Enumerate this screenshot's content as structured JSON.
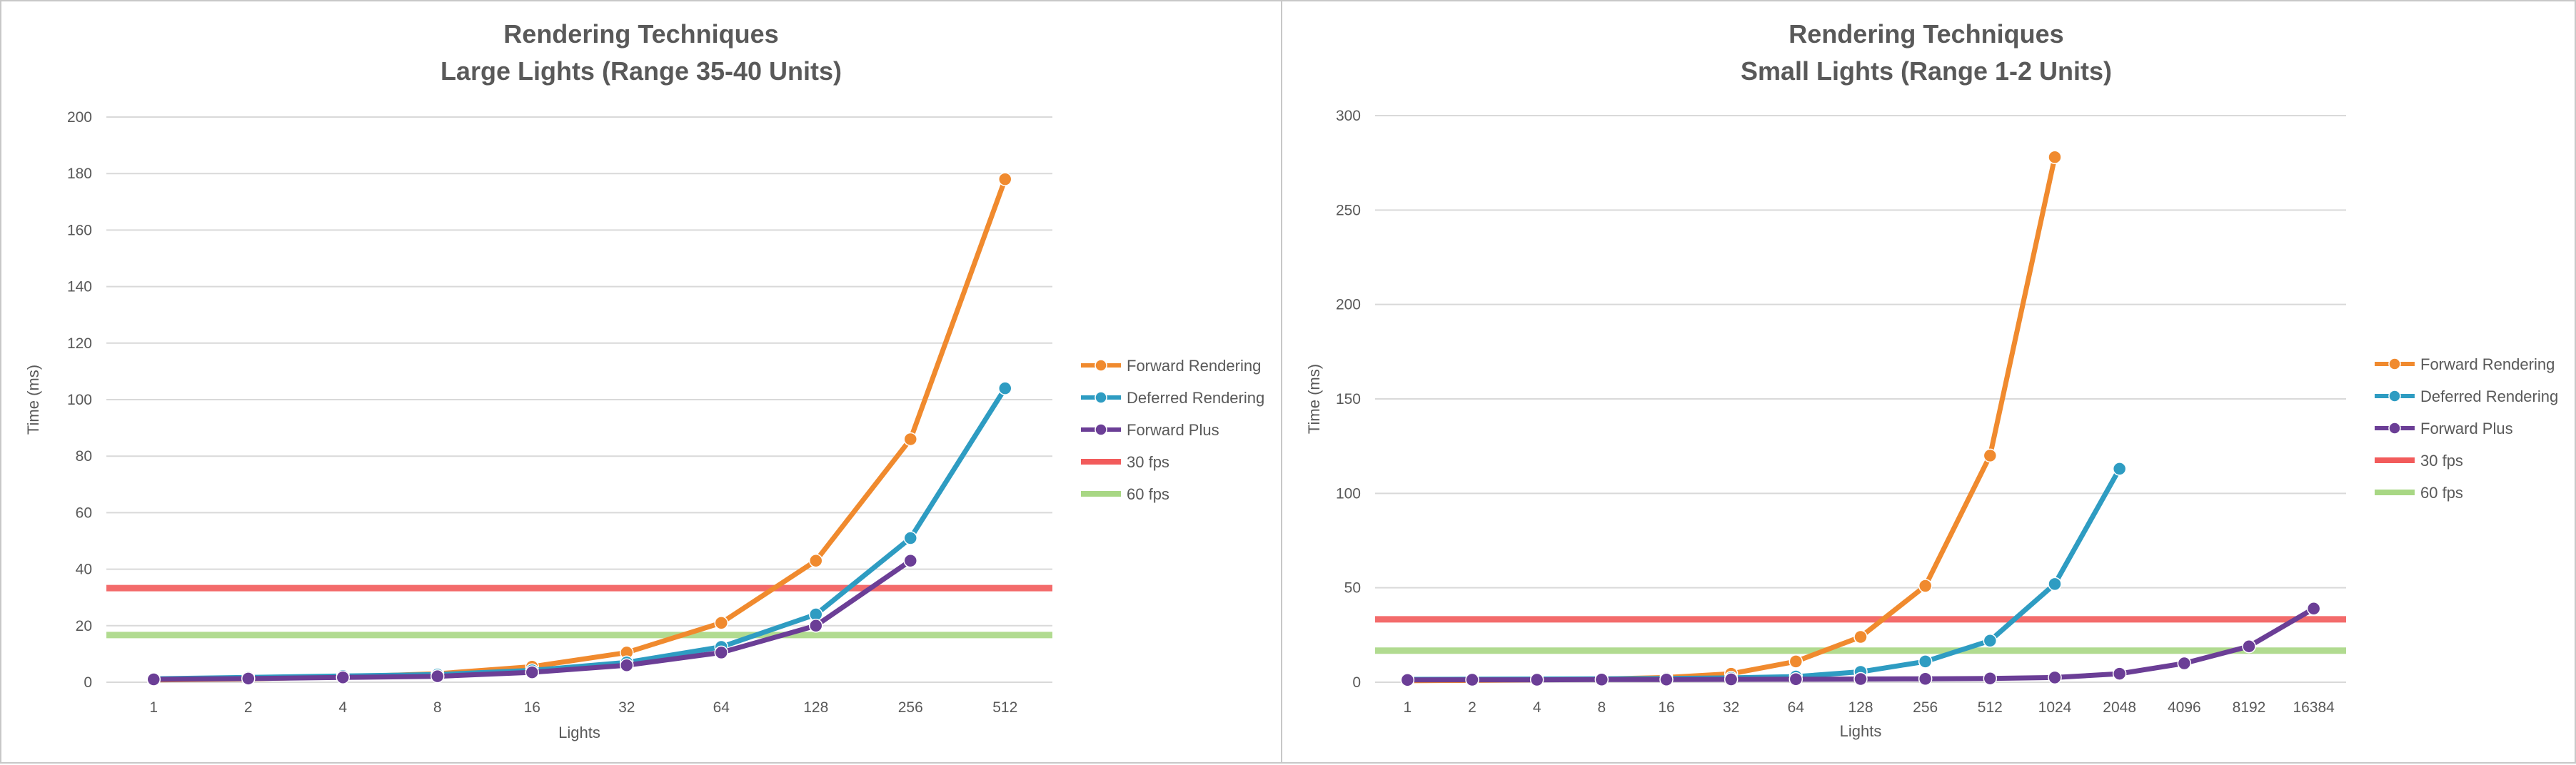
{
  "colors": {
    "forward_rendering": "#F08A2E",
    "deferred_rendering": "#2E9CC2",
    "forward_plus": "#6B3E96",
    "fps30": "#F25B5B",
    "fps60": "#A8D784",
    "grid": "#D9D9D9",
    "text": "#595959"
  },
  "chart_data": [
    {
      "type": "line",
      "title": [
        "Rendering Techniques",
        "Large Lights (Range 35-40 Units)"
      ],
      "xlabel": "Lights",
      "ylabel": "Time (ms)",
      "categories": [
        "1",
        "2",
        "4",
        "8",
        "16",
        "32",
        "64",
        "128",
        "256",
        "512"
      ],
      "ylim": [
        0,
        200
      ],
      "yticks": [
        0,
        20,
        40,
        60,
        80,
        100,
        120,
        140,
        160,
        180,
        200
      ],
      "grid": true,
      "legend_position": "right",
      "series": [
        {
          "name": "Forward Rendering",
          "color_key": "forward_rendering",
          "marker": true,
          "values": [
            0.8,
            1.2,
            1.9,
            3.0,
            5.5,
            10.5,
            21,
            43,
            86,
            178
          ]
        },
        {
          "name": "Deferred Rendering",
          "color_key": "deferred_rendering",
          "marker": true,
          "values": [
            1.2,
            1.7,
            2.2,
            2.7,
            4.2,
            7.0,
            12.5,
            24,
            51,
            104
          ]
        },
        {
          "name": "Forward Plus",
          "color_key": "forward_plus",
          "marker": true,
          "values": [
            1.0,
            1.3,
            1.7,
            2.1,
            3.5,
            6.0,
            10.5,
            20,
            43,
            null
          ]
        },
        {
          "name": "30 fps",
          "color_key": "fps30",
          "marker": false,
          "constant": 33.3
        },
        {
          "name": "60 fps",
          "color_key": "fps60",
          "marker": false,
          "constant": 16.7
        }
      ]
    },
    {
      "type": "line",
      "title": [
        "Rendering Techniques",
        "Small Lights (Range 1-2 Units)"
      ],
      "xlabel": "Lights",
      "ylabel": "Time (ms)",
      "categories": [
        "1",
        "2",
        "4",
        "8",
        "16",
        "32",
        "64",
        "128",
        "256",
        "512",
        "1024",
        "2048",
        "4096",
        "8192",
        "16384"
      ],
      "ylim": [
        0,
        300
      ],
      "yticks": [
        0,
        50,
        100,
        150,
        200,
        250,
        300
      ],
      "grid": true,
      "legend_position": "right",
      "series": [
        {
          "name": "Forward Rendering",
          "color_key": "forward_rendering",
          "marker": true,
          "values": [
            0.8,
            1.0,
            1.3,
            1.7,
            2.5,
            4.5,
            11,
            24,
            51,
            120,
            278,
            null,
            null,
            null,
            null
          ]
        },
        {
          "name": "Deferred Rendering",
          "color_key": "deferred_rendering",
          "marker": true,
          "values": [
            1.5,
            1.6,
            1.7,
            1.8,
            2.0,
            2.3,
            3.0,
            5.5,
            11,
            22,
            52,
            113,
            null,
            null,
            null
          ]
        },
        {
          "name": "Forward Plus",
          "color_key": "forward_plus",
          "marker": true,
          "values": [
            1.2,
            1.3,
            1.3,
            1.4,
            1.4,
            1.5,
            1.6,
            1.7,
            1.8,
            2.0,
            2.5,
            4.5,
            10,
            19,
            39
          ]
        },
        {
          "name": "30 fps",
          "color_key": "fps30",
          "marker": false,
          "constant": 33.3
        },
        {
          "name": "60 fps",
          "color_key": "fps60",
          "marker": false,
          "constant": 16.7
        }
      ]
    }
  ]
}
